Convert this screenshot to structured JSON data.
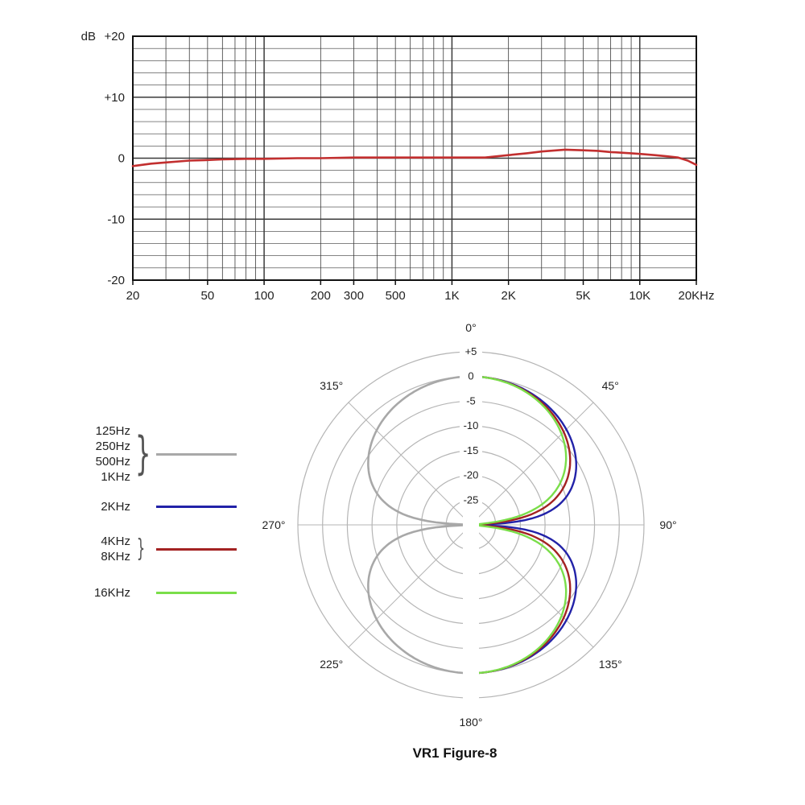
{
  "caption": "VR1 Figure-8",
  "colors": {
    "response_line": "#c22f2f",
    "freq_grid": "#3a3a3a",
    "polar_grid": "#b5b5b5",
    "series_low": "#a8a8a8",
    "series_2k": "#2222a8",
    "series_4k8k": "#a32222",
    "series_16k": "#7ade4a"
  },
  "legend": {
    "groups": [
      {
        "labels": [
          "125Hz",
          "250Hz",
          "500Hz",
          "1KHz"
        ],
        "color": "#a8a8a8"
      },
      {
        "labels": [
          "2KHz"
        ],
        "color": "#2222a8"
      },
      {
        "labels": [
          "4KHz",
          "8KHz"
        ],
        "color": "#a32222"
      },
      {
        "labels": [
          "16KHz"
        ],
        "color": "#7ade4a"
      }
    ]
  },
  "chart_data": [
    {
      "type": "line",
      "y_unit": "dB",
      "xlim": [
        20,
        20000
      ],
      "ylim": [
        -20,
        20
      ],
      "minor_db_step": 2,
      "grid_color": "#3a3a3a",
      "x_ticks": [
        {
          "f": 20,
          "label": "20"
        },
        {
          "f": 50,
          "label": "50"
        },
        {
          "f": 100,
          "label": "100"
        },
        {
          "f": 200,
          "label": "200"
        },
        {
          "f": 300,
          "label": "300"
        },
        {
          "f": 500,
          "label": "500"
        },
        {
          "f": 1000,
          "label": "1K"
        },
        {
          "f": 2000,
          "label": "2K"
        },
        {
          "f": 5000,
          "label": "5K"
        },
        {
          "f": 10000,
          "label": "10K"
        },
        {
          "f": 20000,
          "label": "20KHz"
        }
      ],
      "y_ticks": [
        {
          "v": 20,
          "label": "+20"
        },
        {
          "v": 10,
          "label": "+10"
        },
        {
          "v": 0,
          "label": "0"
        },
        {
          "v": -10,
          "label": "-10"
        },
        {
          "v": -20,
          "label": "-20"
        }
      ],
      "series": [
        {
          "name": "frequency-response",
          "color": "#c22f2f",
          "points": [
            [
              20,
              -1.3
            ],
            [
              25,
              -0.9
            ],
            [
              30,
              -0.7
            ],
            [
              40,
              -0.4
            ],
            [
              50,
              -0.3
            ],
            [
              60,
              -0.2
            ],
            [
              80,
              -0.1
            ],
            [
              100,
              -0.1
            ],
            [
              150,
              0
            ],
            [
              200,
              0
            ],
            [
              300,
              0.1
            ],
            [
              400,
              0.1
            ],
            [
              500,
              0.1
            ],
            [
              700,
              0.1
            ],
            [
              1000,
              0.1
            ],
            [
              1500,
              0.1
            ],
            [
              2000,
              0.5
            ],
            [
              2500,
              0.8
            ],
            [
              3000,
              1.1
            ],
            [
              4000,
              1.4
            ],
            [
              5000,
              1.3
            ],
            [
              6000,
              1.2
            ],
            [
              7000,
              1.0
            ],
            [
              8000,
              0.9
            ],
            [
              9000,
              0.8
            ],
            [
              10000,
              0.7
            ],
            [
              12000,
              0.5
            ],
            [
              14000,
              0.3
            ],
            [
              16000,
              0.1
            ],
            [
              18000,
              -0.4
            ],
            [
              20000,
              -1.1
            ]
          ]
        }
      ]
    },
    {
      "type": "polar",
      "pattern": "figure-8",
      "min_db": -30,
      "max_db": 5,
      "grid_color": "#b5b5b5",
      "rings": [
        {
          "db": 5,
          "label": "+5"
        },
        {
          "db": 0,
          "label": "0"
        },
        {
          "db": -5,
          "label": "-5"
        },
        {
          "db": -10,
          "label": "-10"
        },
        {
          "db": -15,
          "label": "-15"
        },
        {
          "db": -20,
          "label": "-20"
        },
        {
          "db": -25,
          "label": "-25"
        }
      ],
      "angle_labels": [
        {
          "deg": 0,
          "label": "0°"
        },
        {
          "deg": 45,
          "label": "45°"
        },
        {
          "deg": 90,
          "label": "90°"
        },
        {
          "deg": 135,
          "label": "135°"
        },
        {
          "deg": 180,
          "label": "180°"
        },
        {
          "deg": 225,
          "label": "225°"
        },
        {
          "deg": 270,
          "label": "270°"
        },
        {
          "deg": 315,
          "label": "315°"
        }
      ],
      "series": [
        {
          "name": "125Hz-1KHz",
          "color": "#a8a8a8",
          "side": "left",
          "lobe_exponent": 1.0,
          "width": 2.6
        },
        {
          "name": "2KHz",
          "color": "#2222a8",
          "side": "right",
          "lobe_exponent": 0.9,
          "width": 2.4
        },
        {
          "name": "4KHz-8KHz",
          "color": "#a32222",
          "side": "right",
          "lobe_exponent": 1.15,
          "width": 2.4
        },
        {
          "name": "16KHz",
          "color": "#7ade4a",
          "side": "right",
          "lobe_exponent": 1.35,
          "width": 2.4
        }
      ]
    }
  ]
}
